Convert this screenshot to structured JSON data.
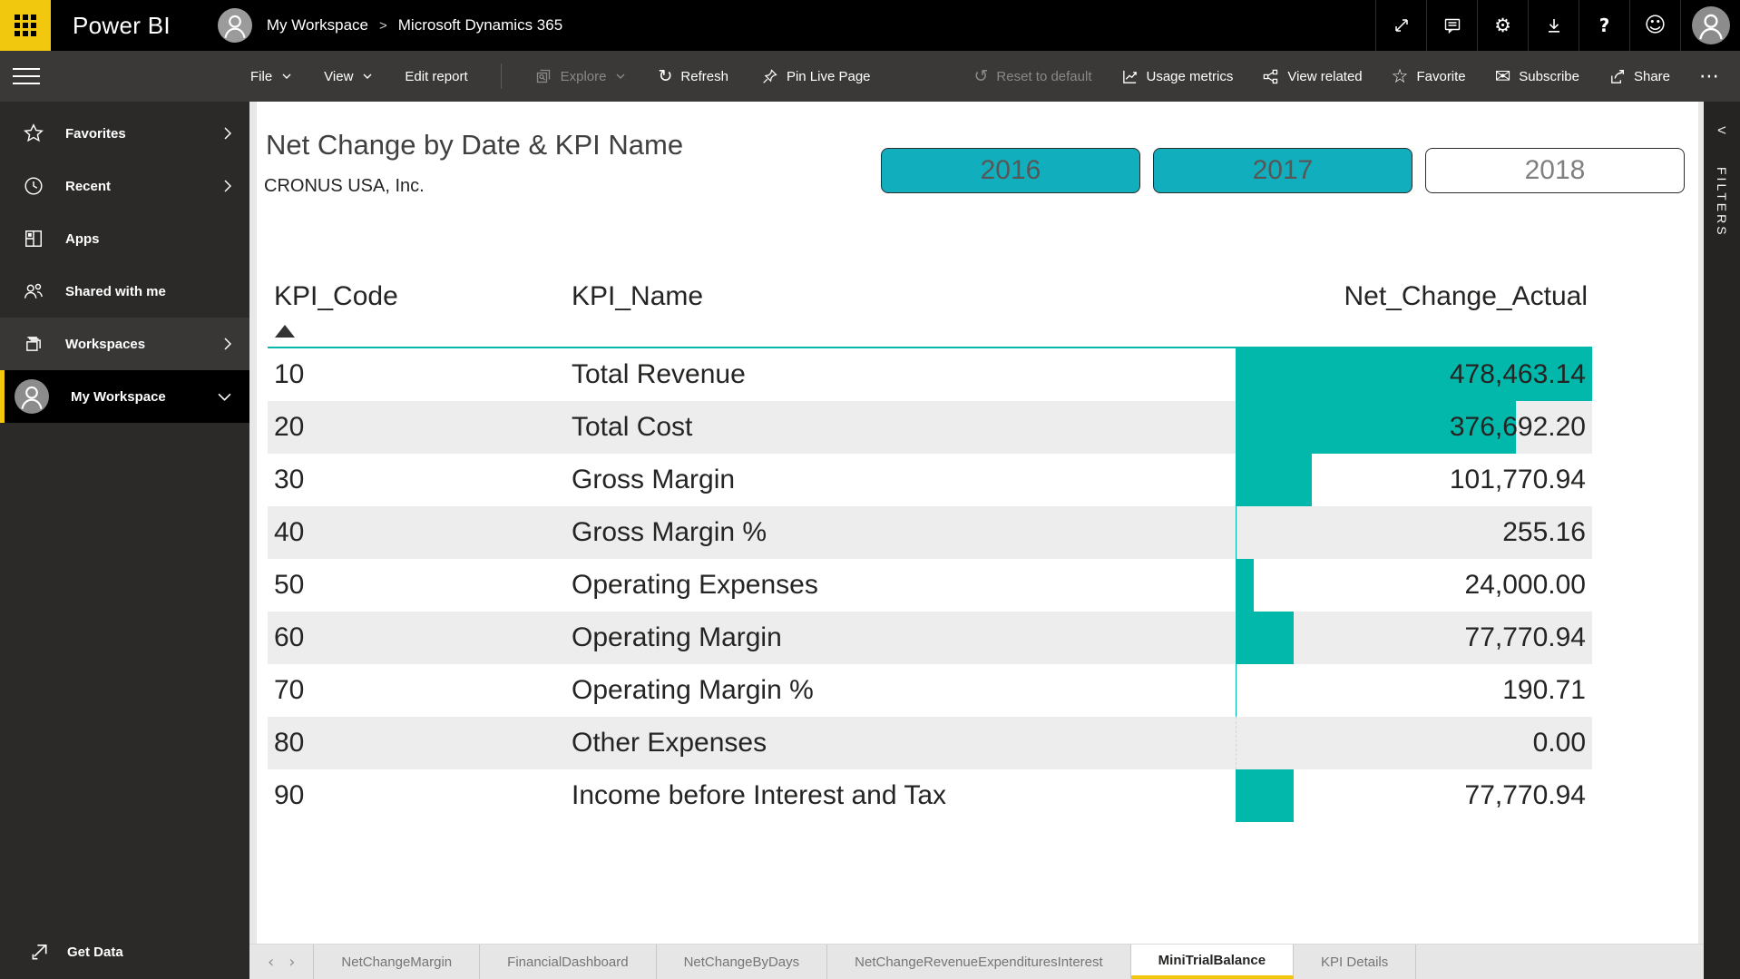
{
  "colors": {
    "brand_yellow": "#F2C80F",
    "bar_teal": "#01B8AA",
    "button_teal": "#11AFBD",
    "topbar_black": "#000000",
    "toolbar_gray": "#3A3938",
    "sidebar_gray": "#2B2A29"
  },
  "topbar": {
    "app_name": "Power BI",
    "breadcrumb": {
      "workspace": "My Workspace",
      "separator": ">",
      "report": "Microsoft Dynamics 365"
    },
    "icon_names": [
      "fullscreen-icon",
      "comments-icon",
      "settings-gear-icon",
      "download-icon",
      "help-icon",
      "feedback-smiley-icon",
      "account-avatar"
    ],
    "settings_glyph": "⚙",
    "help_glyph": "?",
    "smiley_glyph": "☺"
  },
  "toolbar": {
    "file_label": "File",
    "view_label": "View",
    "edit_report_label": "Edit report",
    "explore_label": "Explore",
    "refresh_label": "Refresh",
    "refresh_glyph": "↻",
    "pin_label": "Pin Live Page",
    "reset_label": "Reset to default",
    "reset_glyph": "↺",
    "usage_label": "Usage metrics",
    "related_label": "View related",
    "favorite_label": "Favorite",
    "favorite_glyph": "☆",
    "subscribe_label": "Subscribe",
    "subscribe_glyph": "✉",
    "share_label": "Share",
    "more_label": "⋯"
  },
  "sidebar": {
    "items": [
      {
        "label": "Favorites",
        "icon": "star-icon",
        "chevron": "right"
      },
      {
        "label": "Recent",
        "icon": "clock-icon",
        "chevron": "right"
      },
      {
        "label": "Apps",
        "icon": "apps-icon",
        "chevron": ""
      },
      {
        "label": "Shared with me",
        "icon": "people-icon",
        "chevron": ""
      },
      {
        "label": "Workspaces",
        "icon": "workspaces-icon",
        "chevron": "right",
        "state": "highlighted"
      },
      {
        "label": "My Workspace",
        "icon": "avatar",
        "chevron": "down",
        "state": "selected"
      }
    ],
    "get_data_label": "Get Data"
  },
  "report": {
    "title": "Net Change by Date & KPI Name",
    "subtitle": "CRONUS USA, Inc.",
    "year_filters": [
      {
        "label": "2016",
        "selected": true
      },
      {
        "label": "2017",
        "selected": true
      },
      {
        "label": "2018",
        "selected": false
      }
    ]
  },
  "chart_data": {
    "type": "table",
    "title": "Net Change by Date & KPI Name",
    "columns": [
      "KPI_Code",
      "KPI_Name",
      "Net_Change_Actual"
    ],
    "sort": {
      "column": "KPI_Code",
      "direction": "ascending"
    },
    "bar_column": "Net_Change_Actual",
    "bar_color": "#01B8AA",
    "bar_max": 478463.14,
    "rows": [
      {
        "code": "10",
        "name": "Total Revenue",
        "value": "478,463.14",
        "num": 478463.14
      },
      {
        "code": "20",
        "name": "Total Cost",
        "value": "376,692.20",
        "num": 376692.2
      },
      {
        "code": "30",
        "name": "Gross Margin",
        "value": "101,770.94",
        "num": 101770.94
      },
      {
        "code": "40",
        "name": "Gross Margin %",
        "value": "255.16",
        "num": 255.16
      },
      {
        "code": "50",
        "name": "Operating Expenses",
        "value": "24,000.00",
        "num": 24000.0
      },
      {
        "code": "60",
        "name": "Operating Margin",
        "value": "77,770.94",
        "num": 77770.94
      },
      {
        "code": "70",
        "name": "Operating Margin %",
        "value": "190.71",
        "num": 190.71
      },
      {
        "code": "80",
        "name": "Other Expenses",
        "value": "0.00",
        "num": 0.0
      },
      {
        "code": "90",
        "name": "Income before Interest and Tax",
        "value": "77,770.94",
        "num": 77770.94
      }
    ]
  },
  "filters_panel": {
    "label": "FILTERS",
    "collapse_glyph": "<"
  },
  "tabbar": {
    "prev_glyph": "‹",
    "next_glyph": "›",
    "tabs": [
      {
        "label": "NetChangeMargin",
        "active": false
      },
      {
        "label": "FinancialDashboard",
        "active": false
      },
      {
        "label": "NetChangeByDays",
        "active": false
      },
      {
        "label": "NetChangeRevenueExpendituresInterest",
        "active": false
      },
      {
        "label": "MiniTrialBalance",
        "active": true
      },
      {
        "label": "KPI Details",
        "active": false
      }
    ]
  }
}
